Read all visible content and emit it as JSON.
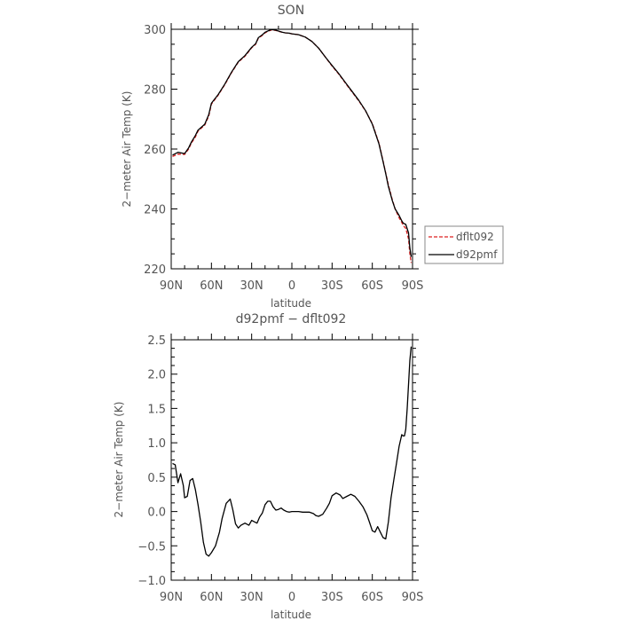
{
  "chart_data": [
    {
      "type": "line",
      "title": "SON",
      "xlabel": "latitude",
      "ylabel": "2−meter Air Temp (K)",
      "xlim": [
        90,
        -90
      ],
      "ylim": [
        220,
        300
      ],
      "x_ticks": [
        90,
        60,
        30,
        0,
        -30,
        -60,
        -90
      ],
      "x_tick_labels": [
        "90N",
        "60N",
        "30N",
        "0",
        "30S",
        "60S",
        "90S"
      ],
      "y_ticks": [
        220,
        240,
        260,
        280,
        300
      ],
      "y_tick_labels": [
        "220",
        "240",
        "260",
        "280",
        "300"
      ],
      "legend_position": "right",
      "series": [
        {
          "name": "dflt092",
          "color": "#dd2222",
          "style": "dashed",
          "x": [
            89,
            85,
            80,
            77,
            75,
            72,
            70,
            65,
            62,
            60,
            55,
            50,
            45,
            40,
            35,
            30,
            27,
            25,
            22,
            20,
            17,
            15,
            12,
            10,
            7,
            5,
            2,
            0,
            -5,
            -10,
            -15,
            -20,
            -25,
            -30,
            -35,
            -40,
            -45,
            -50,
            -55,
            -60,
            -65,
            -68,
            -70,
            -72,
            -75,
            -77,
            -80,
            -82,
            -83,
            -85,
            -87,
            -88,
            -89
          ],
          "values": [
            257.5,
            258.3,
            258.2,
            260.0,
            262.0,
            264.0,
            266.0,
            268.0,
            271.0,
            275.0,
            278.0,
            281.5,
            285.5,
            289.0,
            291.0,
            293.8,
            295.0,
            297.0,
            298.0,
            298.8,
            299.5,
            299.8,
            299.6,
            299.3,
            299.0,
            298.8,
            298.7,
            298.5,
            298.2,
            297.4,
            295.9,
            293.7,
            290.7,
            287.7,
            285.0,
            282.0,
            279.0,
            276.0,
            272.7,
            268.5,
            262.0,
            256.0,
            252.0,
            248.0,
            243.0,
            240.0,
            237.0,
            235.5,
            234.5,
            233.5,
            230.0,
            225.0,
            222.0
          ]
        },
        {
          "name": "d92pmf",
          "color": "#000000",
          "style": "solid",
          "x": [
            89,
            85,
            80,
            77,
            75,
            72,
            70,
            65,
            62,
            60,
            55,
            50,
            45,
            40,
            35,
            30,
            27,
            25,
            22,
            20,
            17,
            15,
            12,
            10,
            7,
            5,
            2,
            0,
            -5,
            -10,
            -15,
            -20,
            -25,
            -30,
            -35,
            -40,
            -45,
            -50,
            -55,
            -60,
            -65,
            -68,
            -70,
            -72,
            -75,
            -77,
            -80,
            -82,
            -83,
            -85,
            -87,
            -88,
            -89
          ],
          "values": [
            258.0,
            258.9,
            258.5,
            260.4,
            262.3,
            264.5,
            266.3,
            268.3,
            271.5,
            275.3,
            278.2,
            281.7,
            285.7,
            289.2,
            291.2,
            294.0,
            295.2,
            297.2,
            298.2,
            299.0,
            299.6,
            299.9,
            299.7,
            299.4,
            299.0,
            298.8,
            298.7,
            298.5,
            298.2,
            297.4,
            295.9,
            293.7,
            290.7,
            287.9,
            285.2,
            282.2,
            279.2,
            276.2,
            272.8,
            268.3,
            261.7,
            255.8,
            251.8,
            247.5,
            242.7,
            240.0,
            237.8,
            236.0,
            235.3,
            234.8,
            232.0,
            227.0,
            224.0
          ]
        }
      ]
    },
    {
      "type": "line",
      "title": "d92pmf − dflt092",
      "xlabel": "latitude",
      "ylabel": "2−meter Air Temp (K)",
      "xlim": [
        90,
        -90
      ],
      "ylim": [
        -1.0,
        2.5
      ],
      "x_ticks": [
        90,
        60,
        30,
        0,
        -30,
        -60,
        -90
      ],
      "x_tick_labels": [
        "90N",
        "60N",
        "30N",
        "0",
        "30S",
        "60S",
        "90S"
      ],
      "y_ticks": [
        -1.0,
        -0.5,
        0.0,
        0.5,
        1.0,
        1.5,
        2.0,
        2.5
      ],
      "y_tick_labels": [
        "−1.0",
        "−0.5",
        "0.0",
        "0.5",
        "1.0",
        "1.5",
        "2.0",
        "2.5"
      ],
      "series": [
        {
          "color": "#000000",
          "style": "solid",
          "x": [
            89,
            87,
            85,
            83,
            81,
            80,
            78,
            76,
            74,
            72,
            70,
            68,
            66,
            64,
            62,
            60,
            57,
            54,
            52,
            49,
            46,
            44,
            42,
            40,
            38,
            35,
            32,
            30,
            28,
            26,
            24,
            22,
            20,
            18,
            16,
            14,
            12,
            10,
            8,
            6,
            4,
            2,
            0,
            -2,
            -5,
            -8,
            -10,
            -13,
            -16,
            -18,
            -20,
            -23,
            -26,
            -28,
            -30,
            -33,
            -36,
            -38,
            -41,
            -44,
            -47,
            -50,
            -53,
            -56,
            -58,
            -60,
            -62,
            -64,
            -66,
            -68,
            -70,
            -72,
            -74,
            -76,
            -78,
            -80,
            -82,
            -83,
            -84,
            -85,
            -86,
            -87,
            -88,
            -89
          ],
          "values": [
            0.7,
            0.68,
            0.42,
            0.55,
            0.38,
            0.2,
            0.22,
            0.45,
            0.48,
            0.32,
            0.1,
            -0.15,
            -0.45,
            -0.62,
            -0.65,
            -0.6,
            -0.5,
            -0.3,
            -0.1,
            0.12,
            0.18,
            0.02,
            -0.18,
            -0.24,
            -0.2,
            -0.17,
            -0.2,
            -0.13,
            -0.15,
            -0.17,
            -0.08,
            -0.02,
            0.1,
            0.15,
            0.15,
            0.07,
            0.02,
            0.03,
            0.05,
            0.02,
            0.0,
            -0.01,
            0.0,
            0.0,
            0.0,
            -0.01,
            -0.01,
            -0.01,
            -0.03,
            -0.06,
            -0.07,
            -0.04,
            0.05,
            0.12,
            0.23,
            0.27,
            0.24,
            0.19,
            0.22,
            0.25,
            0.22,
            0.15,
            0.07,
            -0.05,
            -0.16,
            -0.28,
            -0.3,
            -0.22,
            -0.3,
            -0.38,
            -0.4,
            -0.15,
            0.2,
            0.45,
            0.7,
            0.95,
            1.12,
            1.1,
            1.1,
            1.2,
            1.5,
            1.85,
            2.2,
            2.4
          ]
        }
      ]
    }
  ]
}
